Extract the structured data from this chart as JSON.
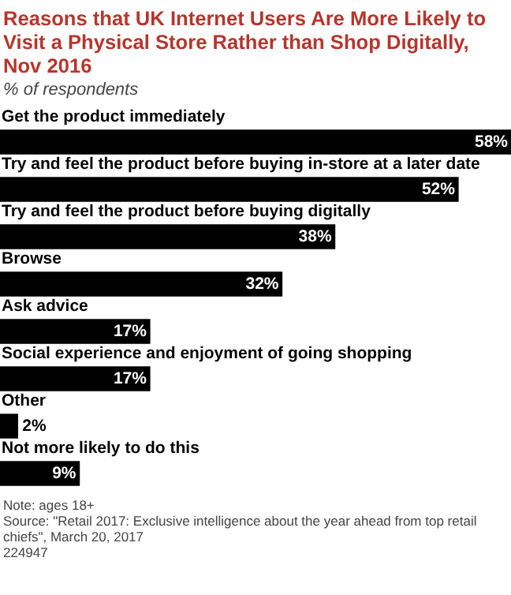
{
  "chart_data": {
    "type": "bar",
    "orientation": "horizontal",
    "title": "Reasons that UK Internet Users Are More Likely to Visit a Physical Store Rather than Shop Digitally, Nov 2016",
    "subtitle": "% of respondents",
    "categories": [
      "Get the product immediately",
      "Try and feel the product before buying in-store at a later date",
      "Try and feel the product before buying digitally",
      "Browse",
      "Ask advice",
      "Social experience and enjoyment of going shopping",
      "Other",
      "Not more likely to do this"
    ],
    "values": [
      58,
      52,
      38,
      32,
      17,
      17,
      2,
      9
    ],
    "value_labels": [
      "58%",
      "52%",
      "38%",
      "32%",
      "17%",
      "17%",
      "2%",
      "9%"
    ],
    "color": "#000000",
    "legend": false,
    "tick_labels": false,
    "annotations": [
      "Note: ages 18+",
      "Source: \"Retail 2017: Exclusive intelligence about the year ahead from top retail chiefs\", March 20, 2017",
      "224947"
    ]
  }
}
